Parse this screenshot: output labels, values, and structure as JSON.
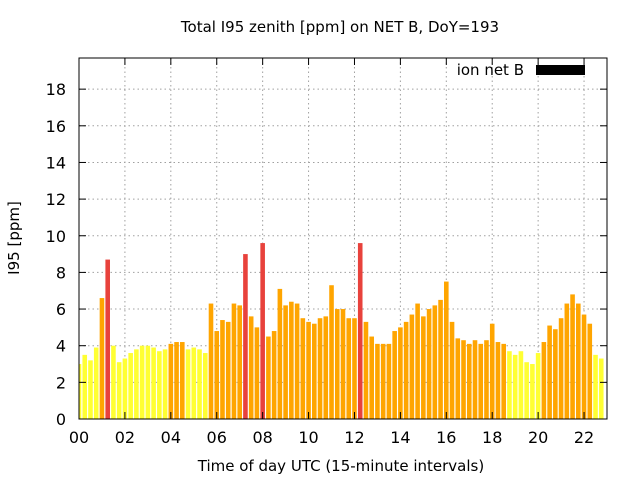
{
  "chart_data": {
    "type": "bar",
    "title": "Total I95 zenith [ppm] on NET B, DoY=193",
    "xlabel": "Time of day UTC (15-minute intervals)",
    "ylabel": "I95 [ppm]",
    "xlim": [
      0,
      23
    ],
    "ylim": [
      0,
      19.7
    ],
    "x_ticks": [
      0,
      2,
      4,
      6,
      8,
      10,
      12,
      14,
      16,
      18,
      20,
      22
    ],
    "x_tick_labels": [
      "00",
      "02",
      "04",
      "06",
      "08",
      "10",
      "12",
      "14",
      "16",
      "18",
      "20",
      "22"
    ],
    "y_ticks": [
      0,
      2,
      4,
      6,
      8,
      10,
      12,
      14,
      16,
      18
    ],
    "y_tick_labels": [
      "0",
      "2",
      "4",
      "6",
      "8",
      "10",
      "12",
      "14",
      "16",
      "18"
    ],
    "grid": true,
    "legend": {
      "label": "ion net B",
      "color": "#000000",
      "position": "top-right"
    },
    "bar_width_hours": 0.2,
    "color_scale": [
      {
        "max": 4,
        "color": "#ffff33"
      },
      {
        "max": 8,
        "color": "#ffa500"
      },
      {
        "max": 100,
        "color": "#e8423c"
      }
    ],
    "series": [
      {
        "x": [
          0,
          0.25,
          0.5,
          0.75,
          1,
          1.25,
          1.5,
          1.75,
          2,
          2.25,
          2.5,
          2.75,
          3,
          3.25,
          3.5,
          3.75,
          4,
          4.25,
          4.5,
          4.75,
          5,
          5.25,
          5.5,
          5.75,
          6,
          6.25,
          6.5,
          6.75,
          7,
          7.25,
          7.5,
          7.75,
          8,
          8.25,
          8.5,
          8.75,
          9,
          9.25,
          9.5,
          9.75,
          10,
          10.25,
          10.5,
          10.75,
          11,
          11.25,
          11.5,
          11.75,
          12,
          12.25,
          12.5,
          12.75,
          13,
          13.25,
          13.5,
          13.75,
          14,
          14.25,
          14.5,
          14.75,
          15,
          15.25,
          15.5,
          15.75,
          16,
          16.25,
          16.5,
          16.75,
          17,
          17.25,
          17.5,
          17.75,
          18,
          18.25,
          18.5,
          18.75,
          19,
          19.25,
          19.5,
          19.75,
          20,
          20.25,
          20.5,
          20.75,
          21,
          21.25,
          21.5,
          21.75,
          22,
          22.25,
          22.5,
          22.75
        ],
        "values": [
          3.0,
          3.5,
          3.2,
          3.9,
          6.6,
          8.7,
          4.0,
          3.1,
          3.3,
          3.6,
          3.8,
          4.0,
          4.0,
          3.9,
          3.7,
          3.8,
          4.1,
          4.2,
          4.2,
          3.8,
          3.9,
          3.8,
          3.6,
          6.3,
          4.8,
          5.4,
          5.3,
          6.3,
          6.2,
          9.0,
          5.6,
          5.0,
          9.6,
          4.5,
          4.8,
          7.1,
          6.2,
          6.4,
          6.3,
          5.5,
          5.3,
          5.2,
          5.5,
          5.6,
          7.3,
          6.0,
          6.0,
          5.5,
          5.5,
          9.6,
          5.3,
          4.5,
          4.1,
          4.1,
          4.1,
          4.8,
          5.0,
          5.3,
          5.7,
          6.3,
          5.6,
          6.0,
          6.2,
          6.5,
          7.5,
          5.3,
          4.4,
          4.3,
          4.1,
          4.3,
          4.1,
          4.3,
          5.2,
          4.2,
          4.1,
          3.7,
          3.5,
          3.7,
          3.1,
          3.0,
          3.6,
          4.2,
          5.1,
          4.9,
          5.5,
          6.3,
          6.8,
          6.3,
          5.7,
          5.2,
          3.5,
          3.3
        ]
      }
    ]
  }
}
